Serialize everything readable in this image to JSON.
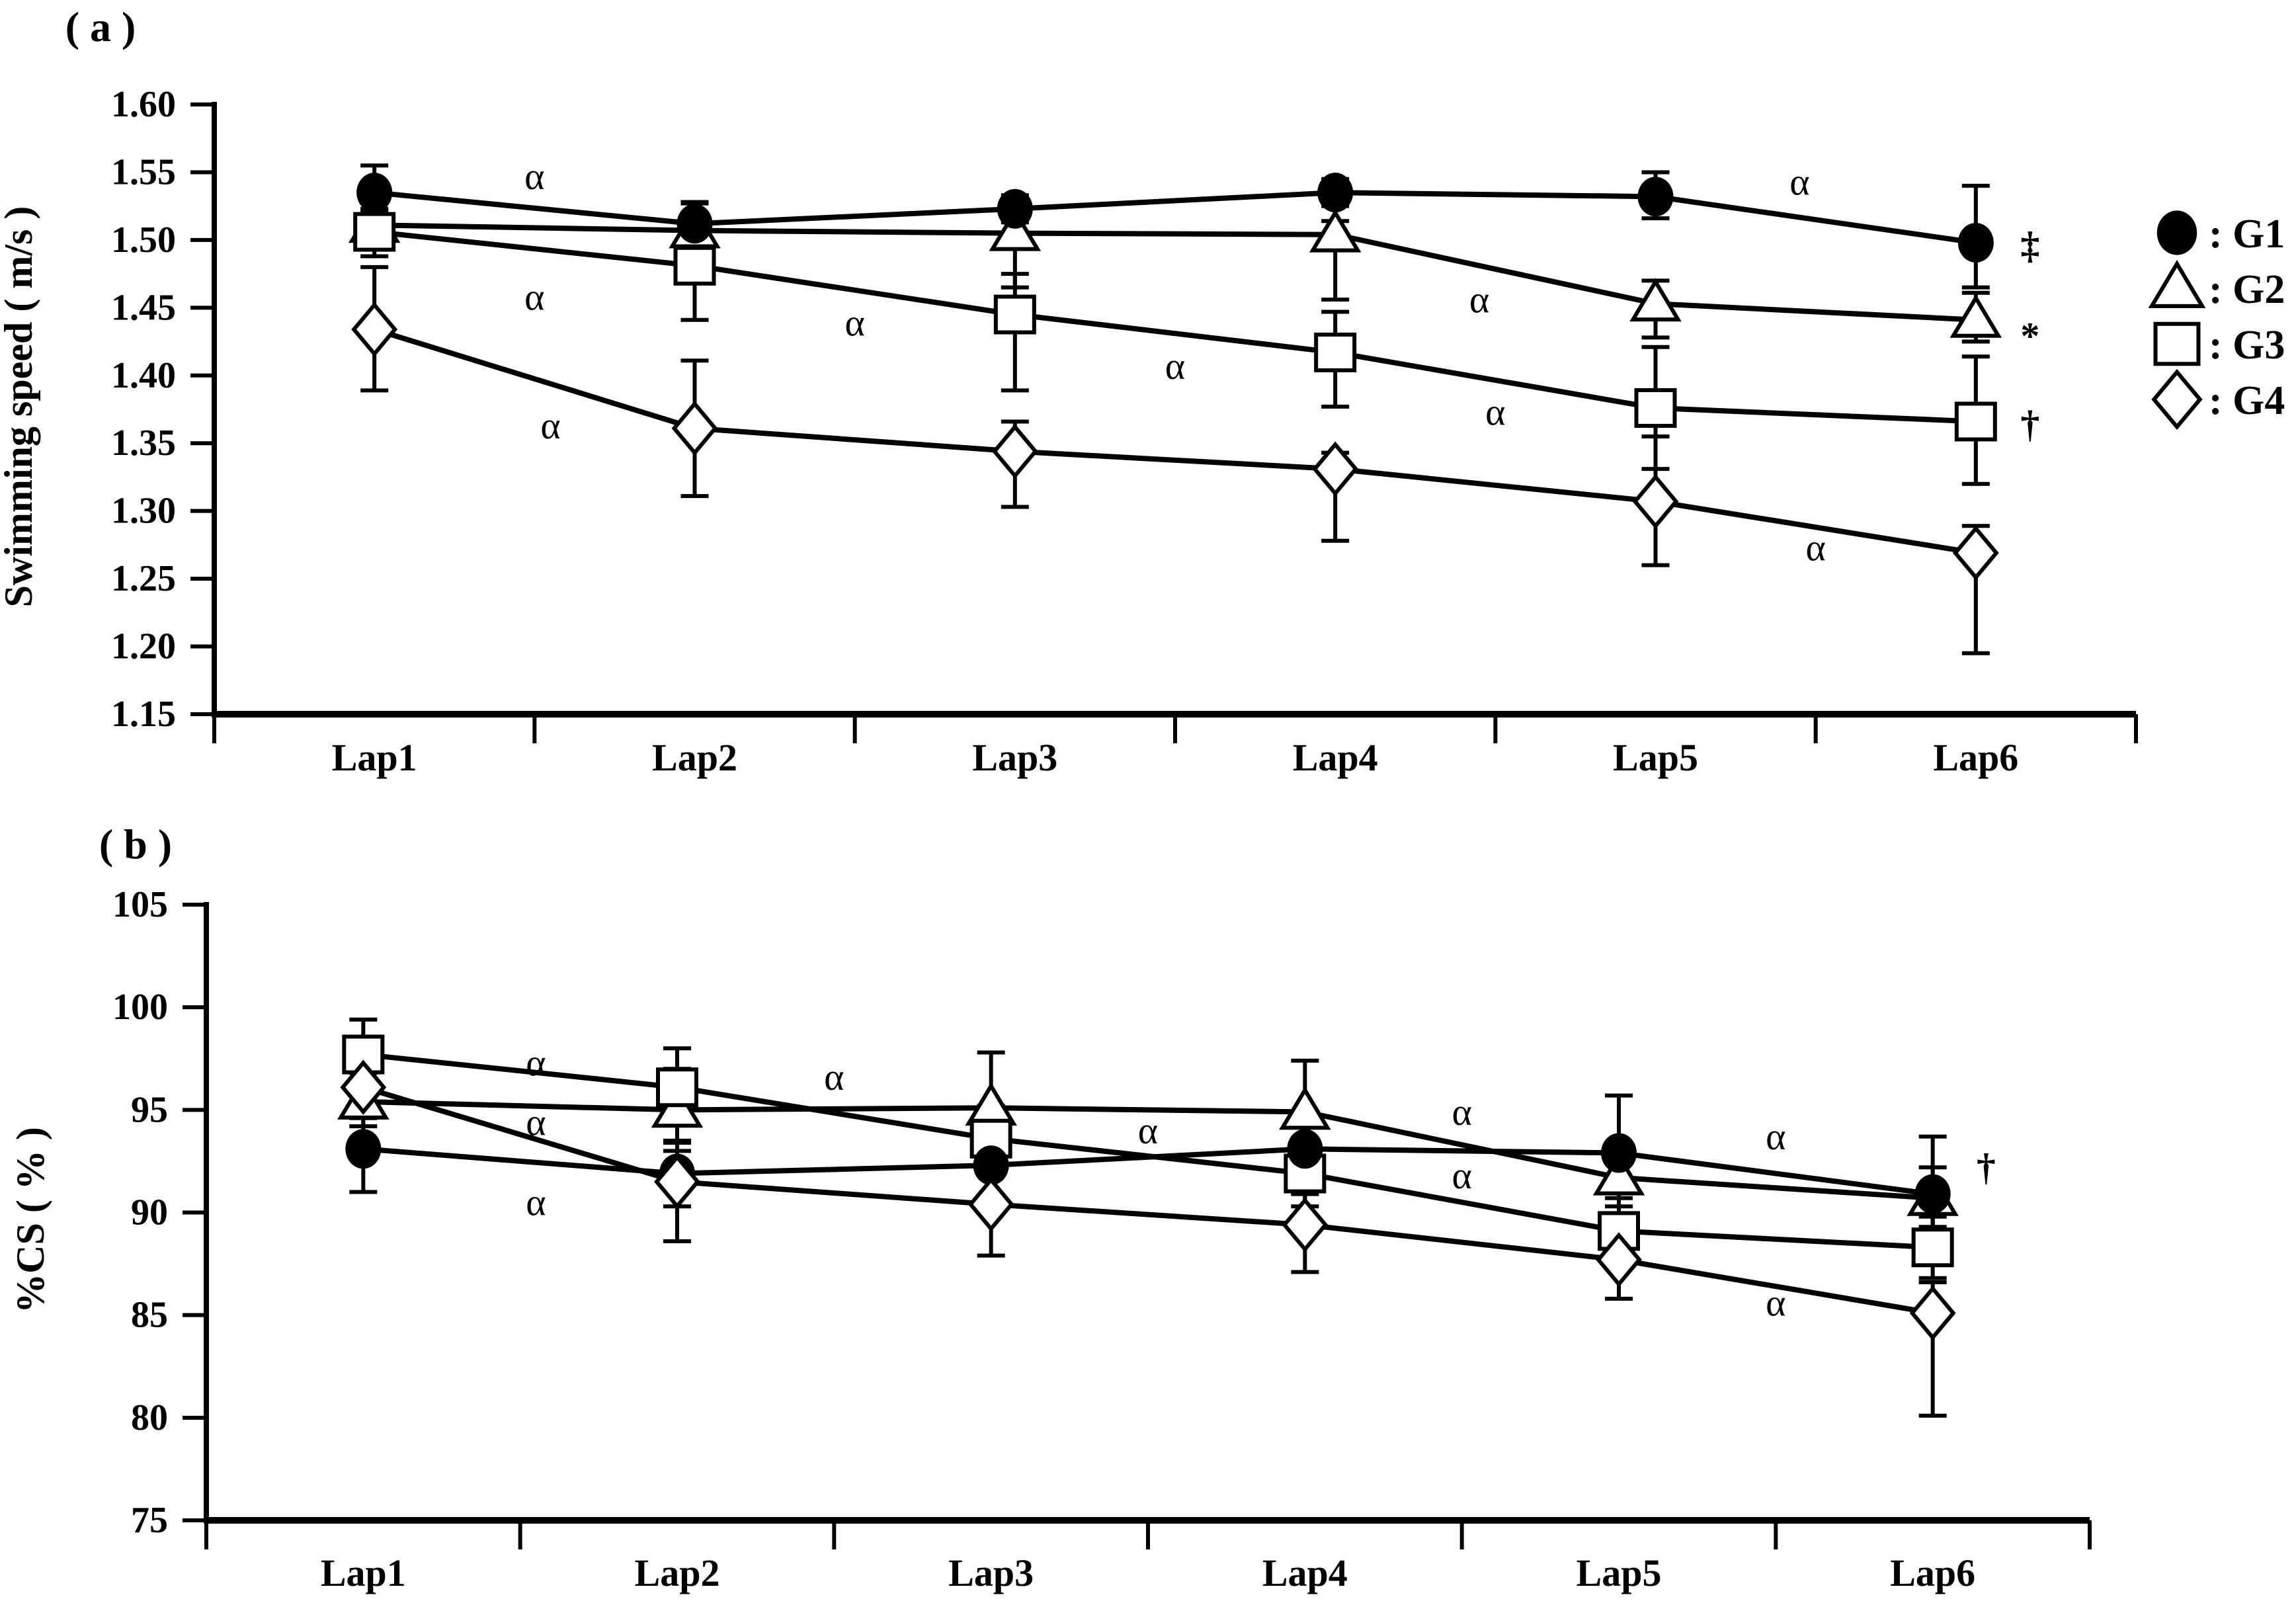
{
  "colors": {
    "foreground": "#000000",
    "background": "#ffffff"
  },
  "legend": {
    "items": [
      {
        "marker": "filled-circle",
        "label": ": G1"
      },
      {
        "marker": "open-triangle",
        "label": ": G2"
      },
      {
        "marker": "open-square",
        "label": ": G3"
      },
      {
        "marker": "open-diamond",
        "label": ": G4"
      }
    ]
  },
  "chart_data": [
    {
      "type": "line",
      "panel": "a",
      "title": "( a )",
      "ylabel": "Swimming speed ( m/s )",
      "xlabel": "",
      "ylim": [
        1.15,
        1.6
      ],
      "ytick_labels": [
        "1.60",
        "1.55",
        "1.50",
        "1.45",
        "1.40",
        "1.35",
        "1.30",
        "1.25",
        "1.20",
        "1.15"
      ],
      "grid": false,
      "categories": [
        "Lap1",
        "Lap2",
        "Lap3",
        "Lap4",
        "Lap5",
        "Lap6"
      ],
      "series": [
        {
          "name": "G1",
          "marker": "filled-circle",
          "values": [
            1.535,
            1.512,
            1.523,
            1.535,
            1.532,
            1.498
          ],
          "err_up": [
            0.02,
            0.016,
            0.01,
            0.01,
            0.018,
            0.042
          ],
          "err_down": [
            0.02,
            0.013,
            0.01,
            0.01,
            0.016,
            0.033
          ],
          "end_annotation": "‡"
        },
        {
          "name": "G2",
          "marker": "open-triangle",
          "values": [
            1.511,
            1.507,
            1.505,
            1.504,
            1.453,
            1.441
          ],
          "err_up": [
            0.012,
            0.02,
            0.012,
            0.01,
            0.017,
            0.02
          ],
          "err_down": [
            0.01,
            0.022,
            0.04,
            0.048,
            0.025,
            0.016
          ],
          "end_annotation": "*"
        },
        {
          "name": "G3",
          "marker": "open-square",
          "values": [
            1.506,
            1.481,
            1.445,
            1.417,
            1.376,
            1.366
          ],
          "err_up": [
            0.016,
            0.038,
            0.03,
            0.03,
            0.045,
            0.048
          ],
          "err_down": [
            0.018,
            0.04,
            0.056,
            0.04,
            0.045,
            0.046
          ],
          "end_annotation": "†"
        },
        {
          "name": "G4",
          "marker": "open-diamond",
          "values": [
            1.434,
            1.361,
            1.344,
            1.331,
            1.307,
            1.269
          ],
          "err_up": [
            0.046,
            0.05,
            0.022,
            0.012,
            0.048,
            0.02
          ],
          "err_down": [
            0.045,
            0.05,
            0.041,
            0.053,
            0.047,
            0.074
          ],
          "end_annotation": null
        }
      ],
      "annotations": [
        {
          "x": 1.5,
          "y": 1.547,
          "text": "α"
        },
        {
          "x": 1.5,
          "y": 1.458,
          "text": "α"
        },
        {
          "x": 1.55,
          "y": 1.363,
          "text": "α"
        },
        {
          "x": 2.5,
          "y": 1.439,
          "text": "α"
        },
        {
          "x": 3.5,
          "y": 1.407,
          "text": "α"
        },
        {
          "x": 4.45,
          "y": 1.456,
          "text": "α"
        },
        {
          "x": 4.5,
          "y": 1.373,
          "text": "α"
        },
        {
          "x": 5.45,
          "y": 1.543,
          "text": "α"
        },
        {
          "x": 5.5,
          "y": 1.273,
          "text": "α"
        }
      ]
    },
    {
      "type": "line",
      "panel": "b",
      "title": "( b )",
      "ylabel": "%CS ( % )",
      "xlabel": "",
      "ylim": [
        75,
        105
      ],
      "ytick_labels": [
        "105",
        "100",
        "95",
        "90",
        "85",
        "80",
        "75"
      ],
      "grid": false,
      "categories": [
        "Lap1",
        "Lap2",
        "Lap3",
        "Lap4",
        "Lap5",
        "Lap6"
      ],
      "series": [
        {
          "name": "G1",
          "marker": "filled-circle",
          "values": [
            93.1,
            91.9,
            92.3,
            93.1,
            92.9,
            90.9
          ],
          "err_up": [
            1.6,
            1.5,
            1.4,
            1.5,
            2.8,
            2.8
          ],
          "err_down": [
            2.1,
            1.6,
            1.5,
            1.5,
            1.5,
            1.6
          ],
          "end_annotation": null
        },
        {
          "name": "G2",
          "marker": "open-triangle",
          "values": [
            95.4,
            95.0,
            95.1,
            94.9,
            91.7,
            90.7
          ],
          "err_up": [
            1.4,
            2.0,
            2.7,
            2.5,
            1.6,
            1.5
          ],
          "err_down": [
            1.2,
            1.5,
            1.6,
            1.5,
            1.4,
            1.5
          ],
          "end_annotation": null
        },
        {
          "name": "G3",
          "marker": "open-square",
          "values": [
            97.7,
            96.1,
            93.6,
            91.9,
            89.1,
            88.3
          ],
          "err_up": [
            1.7,
            1.9,
            1.6,
            1.5,
            1.6,
            1.5
          ],
          "err_down": [
            1.4,
            1.5,
            1.5,
            1.6,
            1.5,
            1.5
          ],
          "end_annotation": null
        },
        {
          "name": "G4",
          "marker": "open-diamond",
          "values": [
            96.1,
            91.5,
            90.4,
            89.4,
            87.7,
            85.1
          ],
          "err_up": [
            1.2,
            1.5,
            1.5,
            1.5,
            1.6,
            1.5
          ],
          "err_down": [
            1.5,
            2.9,
            2.5,
            2.3,
            1.9,
            5.0
          ],
          "end_annotation": null
        }
      ],
      "annotations": [
        {
          "x": 1.55,
          "y": 97.3,
          "text": "α"
        },
        {
          "x": 1.55,
          "y": 94.4,
          "text": "α"
        },
        {
          "x": 1.55,
          "y": 90.5,
          "text": "α"
        },
        {
          "x": 2.5,
          "y": 96.6,
          "text": "α"
        },
        {
          "x": 3.5,
          "y": 94.0,
          "text": "α"
        },
        {
          "x": 4.5,
          "y": 94.9,
          "text": "α"
        },
        {
          "x": 4.5,
          "y": 91.8,
          "text": "α"
        },
        {
          "x": 5.5,
          "y": 93.7,
          "text": "α"
        },
        {
          "x": 5.5,
          "y": 85.6,
          "text": "α"
        },
        {
          "x": 6.17,
          "y": 92.2,
          "text": "†"
        }
      ]
    }
  ]
}
